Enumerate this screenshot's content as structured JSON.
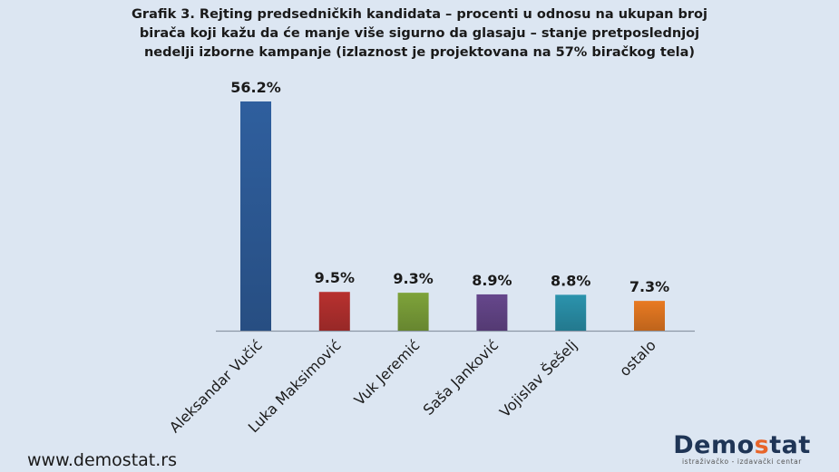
{
  "chart_data": {
    "type": "bar",
    "title_lines": [
      "Grafik 3. Rejting predsedničkih kandidata – procenti u odnosu na ukupan broj",
      "birača koji kažu da će manje više sigurno da glasaju – stanje pretposlednjoj",
      "nedelji izborne kampanje (izlaznost je projektovana na 57% biračkog tela)"
    ],
    "categories": [
      "Aleksandar Vučić",
      "Luka Maksimović",
      "Vuk Jeremić",
      "Saša Janković",
      "Vojislav Šešelj",
      "ostalo"
    ],
    "values": [
      56.2,
      9.5,
      9.3,
      8.9,
      8.8,
      7.3
    ],
    "data_labels": [
      "56.2%",
      "9.5%",
      "9.3%",
      "8.9%",
      "8.8%",
      "7.3%"
    ],
    "colors": [
      "#2f5f9e",
      "#b8312f",
      "#7ea33a",
      "#66478c",
      "#2b93ad",
      "#e87a22"
    ],
    "ylim": [
      0,
      56.2
    ],
    "grid": false,
    "legend": "none"
  },
  "footer": {
    "url": "www.demostat.rs",
    "logo_text_main": "Demo",
    "logo_text_accent": "s",
    "logo_text_end": "tat",
    "logo_subtitle": "istraživačko - izdavački centar"
  }
}
